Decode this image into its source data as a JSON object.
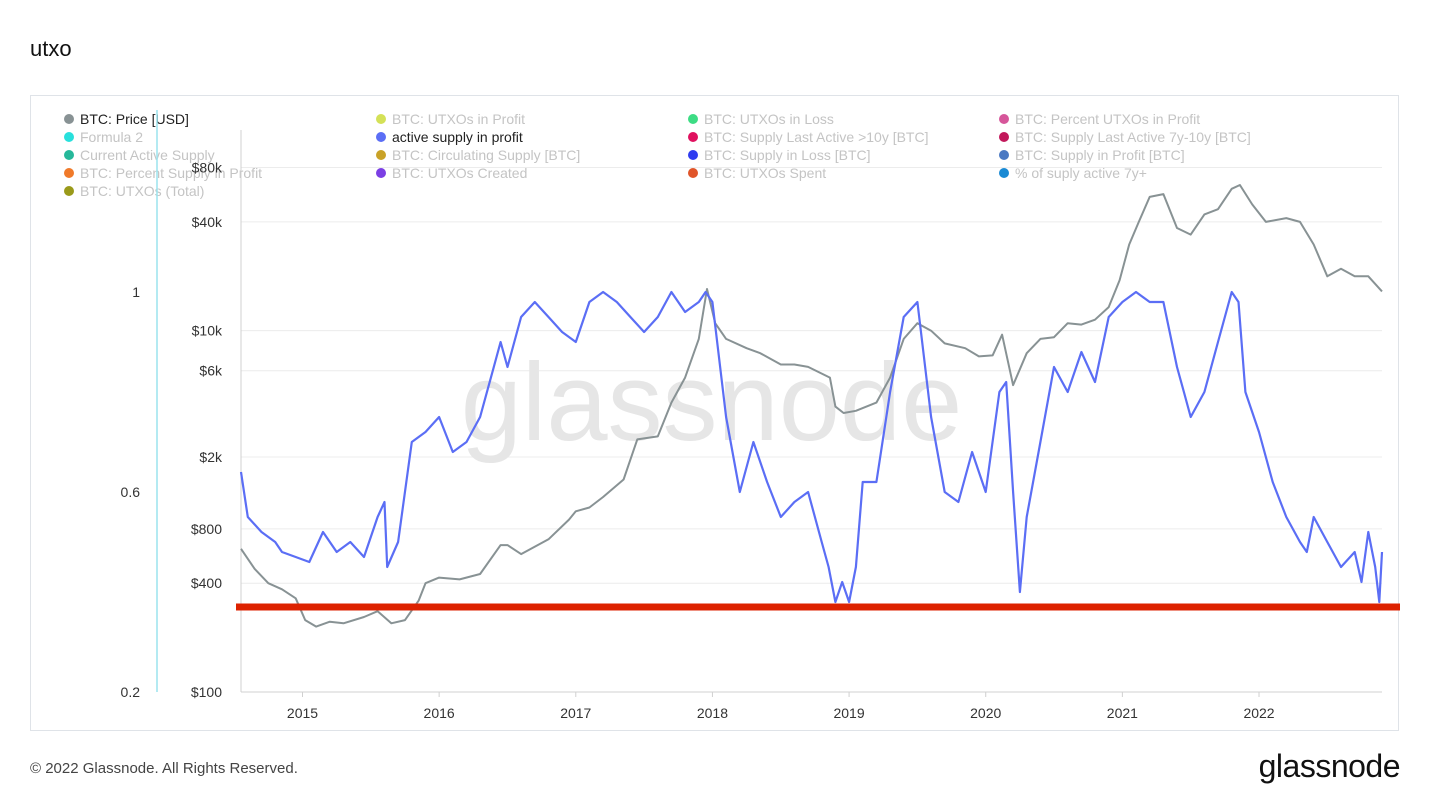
{
  "page": {
    "title": "utxo"
  },
  "legend": [
    {
      "label": "BTC: Price [USD]",
      "color": "#889294",
      "active": true
    },
    {
      "label": "BTC: UTXOs in Profit",
      "color": "#d4e157",
      "active": false
    },
    {
      "label": "BTC: UTXOs in Loss",
      "color": "#3ddc84",
      "active": false
    },
    {
      "label": "BTC: Percent UTXOs in Profit",
      "color": "#d6569a",
      "active": false
    },
    {
      "label": "Formula 2",
      "color": "#28e0dc",
      "active": false
    },
    {
      "label": "active supply in profit",
      "color": "#5b6ef5",
      "active": true
    },
    {
      "label": "BTC: Supply Last Active >10y [BTC]",
      "color": "#e0115f",
      "active": false
    },
    {
      "label": "BTC: Supply Last Active 7y-10y [BTC]",
      "color": "#c2185b",
      "active": false
    },
    {
      "label": "Current Active Supply",
      "color": "#26b89a",
      "active": false
    },
    {
      "label": "BTC: Circulating Supply [BTC]",
      "color": "#c9a227",
      "active": false
    },
    {
      "label": "BTC: Supply in Loss [BTC]",
      "color": "#2f3cf0",
      "active": false
    },
    {
      "label": "BTC: Supply in Profit [BTC]",
      "color": "#4a78c2",
      "active": false
    },
    {
      "label": "BTC: Percent Supply in Profit",
      "color": "#f07a2a",
      "active": false
    },
    {
      "label": "BTC: UTXOs Created",
      "color": "#7b3fe4",
      "active": false
    },
    {
      "label": "BTC: UTXOs Spent",
      "color": "#e0552a",
      "active": false
    },
    {
      "label": "% of suply active 7y+",
      "color": "#1a8ad4",
      "active": false
    },
    {
      "label": "BTC: UTXOs (Total)",
      "color": "#9a9a1a",
      "active": false
    }
  ],
  "chart_data": {
    "type": "line",
    "title": "",
    "x_ticks": [
      "2015",
      "2016",
      "2017",
      "2018",
      "2019",
      "2020",
      "2021",
      "2022"
    ],
    "x_range": [
      2014.55,
      2022.9
    ],
    "y_left": {
      "ticks": [
        "1",
        "0.6",
        "0.2"
      ],
      "tick_values": [
        1,
        0.6,
        0.2
      ],
      "range": [
        0.2,
        1.0
      ],
      "color": "#9be4ee"
    },
    "y_right": {
      "scale": "log",
      "ticks": [
        "$80k",
        "$40k",
        "$10k",
        "$6k",
        "$2k",
        "$800",
        "$400",
        "$100"
      ],
      "tick_values": [
        80000,
        40000,
        10000,
        6000,
        2000,
        800,
        400,
        100
      ],
      "range": [
        100,
        100000
      ]
    },
    "horizontal_marker": {
      "value": 0.37,
      "axis": "left",
      "color": "#dd2200"
    },
    "watermark": "glassnode",
    "series": [
      {
        "name": "BTC: Price [USD]",
        "axis": "right",
        "color": "#889294",
        "x": [
          2014.55,
          2014.65,
          2014.75,
          2014.85,
          2014.95,
          2015.02,
          2015.1,
          2015.2,
          2015.3,
          2015.45,
          2015.55,
          2015.65,
          2015.75,
          2015.85,
          2015.9,
          2016.0,
          2016.15,
          2016.3,
          2016.45,
          2016.5,
          2016.6,
          2016.8,
          2016.95,
          2017.0,
          2017.1,
          2017.2,
          2017.35,
          2017.45,
          2017.6,
          2017.7,
          2017.8,
          2017.9,
          2017.96,
          2018.02,
          2018.1,
          2018.25,
          2018.35,
          2018.5,
          2018.6,
          2018.7,
          2018.86,
          2018.9,
          2018.96,
          2019.05,
          2019.2,
          2019.3,
          2019.4,
          2019.5,
          2019.6,
          2019.7,
          2019.85,
          2019.95,
          2020.05,
          2020.12,
          2020.2,
          2020.3,
          2020.4,
          2020.5,
          2020.6,
          2020.7,
          2020.8,
          2020.9,
          2020.98,
          2021.05,
          2021.12,
          2021.2,
          2021.3,
          2021.4,
          2021.5,
          2021.6,
          2021.7,
          2021.8,
          2021.86,
          2021.95,
          2022.05,
          2022.2,
          2022.3,
          2022.4,
          2022.5,
          2022.6,
          2022.7,
          2022.8,
          2022.9
        ],
        "y": [
          620,
          480,
          400,
          370,
          330,
          250,
          230,
          245,
          240,
          260,
          280,
          240,
          250,
          320,
          400,
          430,
          420,
          450,
          650,
          650,
          580,
          700,
          900,
          1000,
          1050,
          1200,
          1500,
          2500,
          2600,
          4000,
          5500,
          9000,
          17000,
          11000,
          9000,
          8000,
          7500,
          6500,
          6500,
          6300,
          5500,
          3800,
          3500,
          3600,
          4000,
          5500,
          9000,
          11000,
          10000,
          8500,
          8000,
          7200,
          7300,
          9500,
          5000,
          7500,
          9000,
          9200,
          11000,
          10800,
          11500,
          13500,
          19000,
          30000,
          40000,
          55000,
          57000,
          37000,
          34000,
          44000,
          47000,
          61000,
          64000,
          50000,
          40000,
          42000,
          40000,
          30000,
          20000,
          22000,
          20000,
          20000,
          16500
        ]
      },
      {
        "name": "active supply in profit",
        "axis": "left",
        "color": "#5b6ef5",
        "x": [
          2014.55,
          2014.6,
          2014.7,
          2014.8,
          2014.85,
          2014.95,
          2015.05,
          2015.15,
          2015.25,
          2015.35,
          2015.45,
          2015.55,
          2015.6,
          2015.62,
          2015.7,
          2015.8,
          2015.9,
          2016.0,
          2016.1,
          2016.2,
          2016.3,
          2016.4,
          2016.45,
          2016.5,
          2016.6,
          2016.7,
          2016.8,
          2016.9,
          2017.0,
          2017.1,
          2017.2,
          2017.3,
          2017.4,
          2017.5,
          2017.6,
          2017.7,
          2017.8,
          2017.9,
          2017.95,
          2018.0,
          2018.1,
          2018.2,
          2018.3,
          2018.4,
          2018.5,
          2018.6,
          2018.7,
          2018.8,
          2018.85,
          2018.9,
          2018.95,
          2019.0,
          2019.05,
          2019.1,
          2019.2,
          2019.3,
          2019.4,
          2019.5,
          2019.6,
          2019.7,
          2019.8,
          2019.9,
          2020.0,
          2020.1,
          2020.15,
          2020.2,
          2020.25,
          2020.3,
          2020.4,
          2020.5,
          2020.6,
          2020.7,
          2020.8,
          2020.9,
          2021.0,
          2021.1,
          2021.2,
          2021.3,
          2021.4,
          2021.45,
          2021.5,
          2021.6,
          2021.7,
          2021.8,
          2021.85,
          2021.9,
          2022.0,
          2022.1,
          2022.2,
          2022.3,
          2022.35,
          2022.4,
          2022.5,
          2022.6,
          2022.7,
          2022.75,
          2022.8,
          2022.85,
          2022.88,
          2022.9
        ],
        "y": [
          0.64,
          0.55,
          0.52,
          0.5,
          0.48,
          0.47,
          0.46,
          0.52,
          0.48,
          0.5,
          0.47,
          0.55,
          0.58,
          0.45,
          0.5,
          0.7,
          0.72,
          0.75,
          0.68,
          0.7,
          0.75,
          0.85,
          0.9,
          0.85,
          0.95,
          0.98,
          0.95,
          0.92,
          0.9,
          0.98,
          1.0,
          0.98,
          0.95,
          0.92,
          0.95,
          1.0,
          0.96,
          0.98,
          1.0,
          0.98,
          0.75,
          0.6,
          0.7,
          0.62,
          0.55,
          0.58,
          0.6,
          0.5,
          0.45,
          0.38,
          0.42,
          0.38,
          0.45,
          0.62,
          0.62,
          0.8,
          0.95,
          0.98,
          0.75,
          0.6,
          0.58,
          0.68,
          0.6,
          0.8,
          0.82,
          0.6,
          0.4,
          0.55,
          0.7,
          0.85,
          0.8,
          0.88,
          0.82,
          0.95,
          0.98,
          1.0,
          0.98,
          0.98,
          0.85,
          0.8,
          0.75,
          0.8,
          0.9,
          1.0,
          0.98,
          0.8,
          0.72,
          0.62,
          0.55,
          0.5,
          0.48,
          0.55,
          0.5,
          0.45,
          0.48,
          0.42,
          0.52,
          0.45,
          0.38,
          0.48
        ]
      }
    ]
  },
  "footer": {
    "copyright": "© 2022 Glassnode. All Rights Reserved.",
    "logo": "glassnode"
  }
}
